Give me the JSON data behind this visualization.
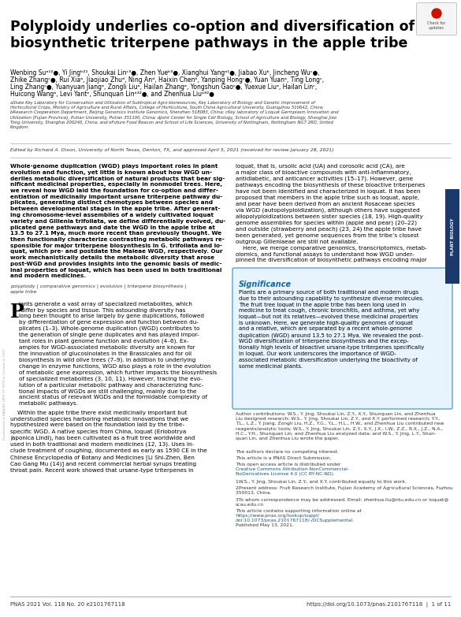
{
  "bg_color": "#ffffff",
  "title_line1": "Polyploidy underlies co-option and diversification of",
  "title_line2": "biosynthetic triterpene pathways in the apple tribe",
  "title_fontsize": 12.5,
  "authors_line1": "Wenbing Suᵃ¹²●, Yi Jingᵇ²¹, Shoukai Linᶜ³●, Zhen Yueᵇ³●, Xianghui Yangᵃ¹●, Jiabao Xuᵇ, Jincheng Wuᶜ●,",
  "authors_line2": "Zhike Zhangᶜ●, Rui Xiaᵃ, Jiaojiao Zhuᵈ, Ning Anᵈ, Haixin Chenᵇ, Yanping Hongᶜ●, Yuan Yuanᵃ, Ting Longᶜ,",
  "authors_line3": "Ling Zhangᶜ●, Yuanyuan Jiangᵃ, Zongli Liuᵃ, Hailan Zhangᵃ, Yongshun Gaoᶜ●, Yuexue Liuᵃ, Hailan Linᶜ,",
  "authors_line4": "Huicong Wangᵃ, Levi Yantᵉ, Shunquan Linᵃ³²●, and Zhenhua Liuᵃ³²●",
  "affil": "aState Key Laboratory for Conservation and Utilization of Subtropical Agro-bioresources, Key Laboratory of Biology and Genetic Improvement of\nHorticultural Crops, Ministry of Agriculture and Rural Affairs, College of Horticulture, South China Agricultural University, Guangzhou 510642, China;\nbResearch Cooperation Department, Beijing Genomics Institute Genomics, Shenzhen 518083, China; cKey laboratory of Loquat Germplasm Innovation and\nUtilization (Fujian Province), Putian University, Putian 351100, China; dJoint Center for Single Cell Biology, School of Agriculture and Biology, Shanghai Jiao\nTong University, Shanghai 200240, China; and eFuture Food Beacon and School of Life Sciences, University of Nottingham, Nottingham NG7 2RD, United\nKingdom",
  "edited_by": "Edited by Richard A. Dixon, University of North Texas, Denton, TX, and approved April 5, 2021 (received for review January 28, 2021)",
  "body1_abstract": "Whole-genome duplication (WGD) plays important roles in plant\nevolution and function, yet little is known about how WGD un-\nderlies metabolic diversification of natural products that bear sig-\nnificant medicinal properties, especially in nonmodel trees. Here,\nwe reveal how WGD laid the foundation for co-option and differ-\nentiation of medicinally important ursane triterpene pathway du-\nplicates, generating distinct chemotypes between species and\nbetween developmental stages in the apple tribe. After generat-\ning chromosome-level assemblies of a widely cultivated loquat\nvariety and Gillenia trifoliata, we define differentially evolved, du-\nplicated gene pathways and date the WGD in the apple tribe at\n13.5 to 27.1 Mya, much more recent than previously thought. We\nthen functionally characterize contrasting metabolic pathways re-\nsponsible for major triterpene biosynthesis in G. trifoliata and lo-\nquat, which pre- and postdate the Maleae WGD, respectively. Our\nwork mechanistically details the metabolic diversity that arose\npost-WGD and provides insights into the genomic basis of medic-\ninal properties of loquat, which has been used in both traditional\nand modern medicines.",
  "keywords": "polyploidy | comparative genomics | evolution | triterpene biosynthesis |\napple tribe",
  "body1_para2_drop": "P",
  "body1_para2": "lants generate a vast array of specialized metabolites, which\n differ by species and tissue. This astounding diversity has\nlong been thought to arise largely by gene duplications, followed\nby differentiation of gene expression and function between du-\nplicates (1–3). Whole-genome duplication (WGD) contributes to\nthe generation of single gene duplicates and has played impor-\ntant roles in plant genome function and evolution (4–6). Ex-\namples for WGD-associated metabolic diversity are known for\nthe innovation of glucosinolates in the Brassicales and for oil\nbiosynthesis in wild olive trees (7–9). In addition to underlying\nchange in enzyme functions, WGD also plays a role in the evolution\nof metabolic gene expression, which further impacts the biosynthesis\nof specialized metabolites (3, 10, 11). However, tracing the evo-\nlution of a particular metabolic pathway and characterizing func-\ntional impacts of WGDs are still challenging, mainly due to the\nancient status of relevant WGDs and the formidable complexity of\nmetabolic pathways.",
  "body1_para3": "    Within the apple tribe there exist medicinally important but\nunderstudied species harboring metabolic innovations that we\nhypothesized were based on the foundation laid by the tribe-\nspecific WGD. A native species from China, loquat (Eriobotrya\njaponica Lindl), has been cultivated as a fruit tree worldwide and\nused in both traditional and modern medicines (12, 13). Uses in-\nclude treatment of coughing, documented as early as 1590 CE in the\nChinese Encyclopedia of Botany and Medicines [Li Shi-Zhen, Ben\nCao Gang Mu (14)] and recent commercial herbal syrups treating\nthroat pain. Recent work showed that ursane-type triterpenes in",
  "body2_text": "loquat, that is, ursolic acid (UA) and corosolic acid (CA), are\na major class of bioactive compounds with anti-inflammatory,\nantidiabetic, and anticancer activities (15–17). However, gene\npathways encoding the biosynthesis of these bioactive triterpenes\nhave not been identified and characterized in loquat. It has been\nproposed that members in the apple tribe such as loquat, apple,\nand pear have been derived from an ancient Rosaceae species\nvia WGD (autopolyploidization), although others have suggested\nallopolyploidizations between sister species (18, 19). High-quality\ngenome assemblies for species within (apple and pear) (20–22)\nand outside (strawberry and peach) (23, 24) the apple tribe have\nbeen generated, yet genome sequences from the tribe’s closest\noutgroup Gilleniaeae are still not available.\n    Here, we merge comparative genomics, transcriptomics, metab-\nolomics, and functional assays to understand how WGD under-\npinned the diversification of biosynthetic pathways encoding major",
  "sig_title": "Significance",
  "sig_body": "Plants are a primary source of both traditional and modern drugs\ndue to their astounding capability to synthesize diverse molecules.\nThe fruit tree loquat in the apple tribe has been long used in\nmedicine to treat cough, chronic bronchitis, and asthma, yet why\nloquat—but not its relatives—evolved these medicinal properties\nis unknown. Here, we generate high-quality genomes of loquat\nand a relative, which are separated by a recent whole-genome\nduplication (WGD) around 13.5 to 27.1 Mya. We revealed the post-\nWGD diversification of triterpene biosynthesis and the excep-\ntionally high levels of bioactive ursane-type triterpenes specifically\nin loquat. Our work underscores the importance of WGD-\nassociated metabolic diversification underlying the bioactivity of\nsome medicinal plants.",
  "contrib": "Author contributions: W.S., Y. Jing, Shoukai Lin, Z.Y., X.Y., Shunquan Lin, and Zhenhua\nLiu designed research; W.S., Y. Jing, Shoukai Lin, Z.Y., and X.Y. performed research; Y.Y.,\nT.L., L.Z., Y. Jiang, Zongli Liu, H.Z., Y.G., Y.L., H.L., H.W., and Zhenhua Liu contributed new\nreagents/analytic tools; W.S., Y. Jing, Shoukai Lin, Z.Y., X.Y., J.X., I.W., Z.Z., R.X., J.Z., N.A.,\nH.C., Y.H., Shunquan Lin, and Zhenhua Liu analyzed data; and W.S., Y. Jing, L.Y., Shun-\nquan Lin, and Zhenhua Liu wrote the paper.",
  "no_competing": "The authors declare no competing interest.",
  "pnas_direct": "This article is a PNAS Direct Submission.",
  "open_access": "This open access article is distributed under Creative Commons Attribution-NonCommercial-\nNoDerivatives License 4.0 (CC BY-NC-ND).",
  "equal": "1W.S., Y. Jing, Shoukai Lin, Z.Y., and X.Y. contributed equally to this work.",
  "present": "2Present address: Fruit Research Institute, Fujian Academy of Agricultural Sciences, Fuzhou\n350013, China.",
  "correspond": "3To whom correspondence may be addressed. Email: zhenhua.liu@ntu.edu.cn or loquat@\nscau.edu.cn",
  "supp": "This article contains supporting information online at https://www.pnas.org/lookup/suppl/\ndoi:10.1073/pnas.2101767118/-/DCSupplemental.",
  "published": "Published May 13, 2021.",
  "pnas_footer": "PNAS 2021 Vol. 118 No. 20 e2101767118",
  "doi_footer": "https://doi.org/10.1073/pnas.2101767118  |  1 of 11",
  "plant_bio_label": "PLANT BIOLOGY",
  "sidebar_color": "#1b3a6b",
  "sig_bg": "#e8f4fd",
  "sig_border": "#5ba3d4",
  "link_color": "#1a5276",
  "body_fontsize": 5.2,
  "small_fontsize": 4.3,
  "footer_fontsize": 5.0
}
